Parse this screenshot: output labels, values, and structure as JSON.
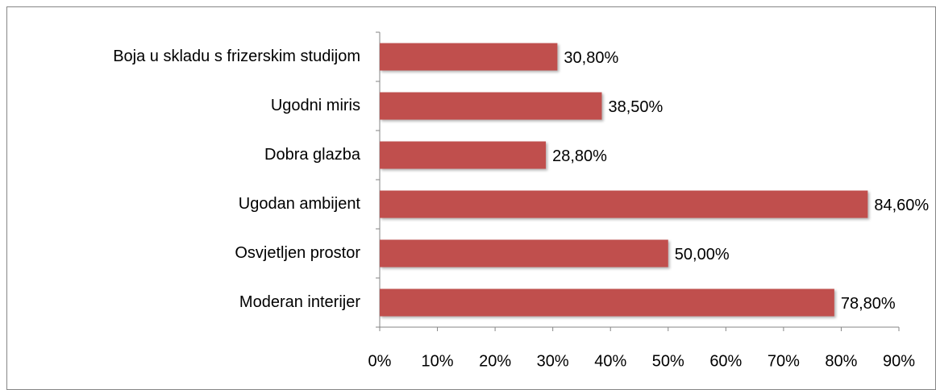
{
  "chart_data": {
    "type": "bar",
    "orientation": "horizontal",
    "categories": [
      "Boja u skladu s frizerskim studijom",
      "Ugodni miris",
      "Dobra glazba",
      "Ugodan ambijent",
      "Osvjetljen prostor",
      "Moderan interijer"
    ],
    "values": [
      30.8,
      38.5,
      28.8,
      84.6,
      50,
      78.8
    ],
    "value_labels": [
      "30,80%",
      "38,50%",
      "28,80%",
      "84,60%",
      "50,00%",
      "78,80%"
    ],
    "color": "#c0504d",
    "xlim": [
      0,
      90
    ],
    "xticks": [
      {
        "value": 0,
        "label": "0%"
      },
      {
        "value": 10,
        "label": "10%"
      },
      {
        "value": 20,
        "label": "20%"
      },
      {
        "value": 30,
        "label": "30%"
      },
      {
        "value": 40,
        "label": "40%"
      },
      {
        "value": 50,
        "label": "50%"
      },
      {
        "value": 60,
        "label": "60%"
      },
      {
        "value": 70,
        "label": "70%"
      },
      {
        "value": 80,
        "label": "80%"
      },
      {
        "value": 90,
        "label": "90%"
      }
    ],
    "grid": false
  }
}
